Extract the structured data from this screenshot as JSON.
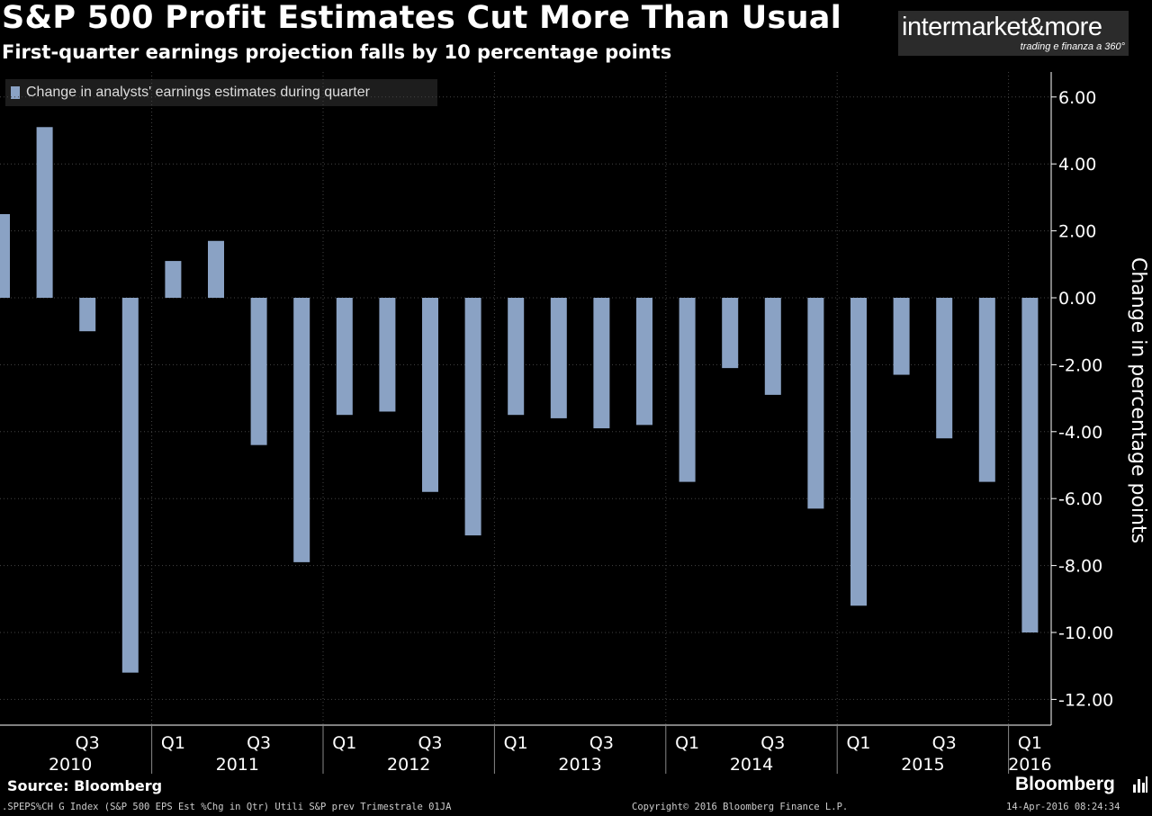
{
  "header": {
    "title": "S&P 500 Profit Estimates Cut More Than Usual",
    "subtitle": "First-quarter earnings projection falls by 10 percentage points"
  },
  "logo": {
    "main": "intermarket&more",
    "sub": "trading e finanza a 360°"
  },
  "legend": {
    "label": "Change in analysts' earnings estimates during quarter"
  },
  "colors": {
    "background": "#000000",
    "bar": "#8aa2c4",
    "grid": "#444444",
    "axis_text": "#ffffff"
  },
  "chart_data": {
    "type": "bar",
    "title": "S&P 500 Profit Estimates Cut More Than Usual",
    "subtitle": "First-quarter earnings projection falls by 10 percentage points",
    "ylabel": "Change in percentage points",
    "ylim": [
      -13,
      6.6
    ],
    "yticks": [
      6,
      4,
      2,
      0,
      -2,
      -4,
      -6,
      -8,
      -10,
      -12
    ],
    "ytick_labels": [
      "6.00",
      "4.00",
      "2.00",
      "0.00",
      "-2.00",
      "-4.00",
      "-6.00",
      "-8.00",
      "-10.00",
      "-12.00"
    ],
    "y_axis_side": "right",
    "legend_position": "top-left",
    "grid": "dashed",
    "categories": [
      "2010 Q1",
      "2010 Q2",
      "2010 Q3",
      "2010 Q4",
      "2011 Q1",
      "2011 Q2",
      "2011 Q3",
      "2011 Q4",
      "2012 Q1",
      "2012 Q2",
      "2012 Q3",
      "2012 Q4",
      "2013 Q1",
      "2013 Q2",
      "2013 Q3",
      "2013 Q4",
      "2014 Q1",
      "2014 Q2",
      "2014 Q3",
      "2014 Q4",
      "2015 Q1",
      "2015 Q2",
      "2015 Q3",
      "2015 Q4",
      "2016 Q1"
    ],
    "values": [
      2.5,
      5.1,
      -1.0,
      -11.2,
      1.1,
      1.7,
      -4.4,
      -7.9,
      -3.5,
      -3.4,
      -5.8,
      -7.1,
      -3.5,
      -3.6,
      -3.9,
      -3.8,
      -5.5,
      -2.1,
      -2.9,
      -6.3,
      -9.2,
      -2.3,
      -4.2,
      -5.5,
      -10.0
    ],
    "x_quarter_labels": [
      {
        "index": 2,
        "label": "Q3"
      },
      {
        "index": 4,
        "label": "Q1"
      },
      {
        "index": 6,
        "label": "Q3"
      },
      {
        "index": 8,
        "label": "Q1"
      },
      {
        "index": 10,
        "label": "Q3"
      },
      {
        "index": 12,
        "label": "Q1"
      },
      {
        "index": 14,
        "label": "Q3"
      },
      {
        "index": 16,
        "label": "Q1"
      },
      {
        "index": 18,
        "label": "Q3"
      },
      {
        "index": 20,
        "label": "Q1"
      },
      {
        "index": 22,
        "label": "Q3"
      },
      {
        "index": 24,
        "label": "Q1"
      }
    ],
    "x_year_labels": [
      {
        "start": 0,
        "end": 3,
        "label": "2010"
      },
      {
        "start": 4,
        "end": 7,
        "label": "2011"
      },
      {
        "start": 8,
        "end": 11,
        "label": "2012"
      },
      {
        "start": 12,
        "end": 15,
        "label": "2013"
      },
      {
        "start": 16,
        "end": 19,
        "label": "2014"
      },
      {
        "start": 20,
        "end": 23,
        "label": "2015"
      },
      {
        "start": 24,
        "end": 24,
        "label": "2016"
      }
    ]
  },
  "footer": {
    "source": "Source: Bloomberg",
    "brand": "Bloomberg",
    "ticker_line": ".SPEPS%CH G Index (S&P 500 EPS Est %Chg in Qtr) Utili S&P prev  Trimestrale 01JA",
    "copyright": "Copyright© 2016 Bloomberg Finance L.P.",
    "timestamp": "14-Apr-2016 08:24:34"
  }
}
